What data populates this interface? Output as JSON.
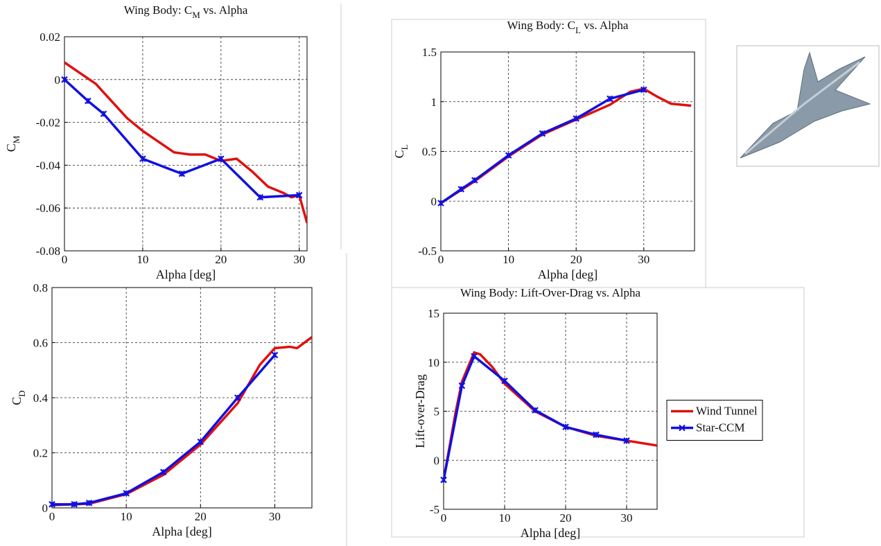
{
  "chart_data": [
    {
      "type": "line",
      "title": {
        "text": "Wing Body: C",
        "subscript": "M",
        "after": " vs. Alpha"
      },
      "xlabel": "Alpha [deg]",
      "ylabel": {
        "text": "C",
        "subscript": "M"
      },
      "xlim": [
        0,
        31
      ],
      "xticks": [
        0,
        10,
        20,
        30
      ],
      "ylim": [
        -0.08,
        0.02
      ],
      "yticks": [
        -0.08,
        -0.06,
        -0.04,
        -0.02,
        0,
        0.02
      ],
      "grid": true,
      "series": [
        {
          "color": "#e01010",
          "x": [
            0,
            2,
            4,
            6,
            8,
            10,
            12,
            14,
            16,
            18,
            20,
            22,
            24,
            26,
            28,
            29,
            30,
            31
          ],
          "values": [
            0.008,
            0.003,
            -0.002,
            -0.01,
            -0.018,
            -0.024,
            -0.029,
            -0.034,
            -0.035,
            -0.035,
            -0.038,
            -0.037,
            -0.043,
            -0.05,
            -0.053,
            -0.055,
            -0.054,
            -0.067
          ]
        },
        {
          "color": "#1010e0",
          "marker": "asterisk",
          "x": [
            0,
            3,
            5,
            10,
            15,
            20,
            25,
            30
          ],
          "values": [
            0,
            -0.01,
            -0.016,
            -0.037,
            -0.044,
            -0.037,
            -0.055,
            -0.054
          ]
        }
      ]
    },
    {
      "type": "line",
      "title": {
        "text": "Wing Body: C",
        "subscript": "L",
        "after": " vs. Alpha"
      },
      "xlabel": "Alpha [deg]",
      "ylabel": {
        "text": "C",
        "subscript": "L"
      },
      "xlim": [
        0,
        37.5
      ],
      "xticks": [
        0,
        10,
        20,
        30
      ],
      "ylim": [
        -0.5,
        1.5
      ],
      "yticks": [
        -0.5,
        0,
        0.5,
        1,
        1.5
      ],
      "grid": true,
      "series": [
        {
          "color": "#e01010",
          "x": [
            0,
            5,
            10,
            15,
            20,
            25,
            28,
            30,
            32,
            34,
            37
          ],
          "values": [
            -0.02,
            0.2,
            0.45,
            0.67,
            0.82,
            0.97,
            1.1,
            1.13,
            1.05,
            0.98,
            0.96
          ]
        },
        {
          "color": "#1010e0",
          "marker": "asterisk",
          "x": [
            0,
            3,
            5,
            10,
            15,
            20,
            25,
            30
          ],
          "values": [
            -0.02,
            0.12,
            0.21,
            0.46,
            0.68,
            0.83,
            1.03,
            1.12
          ]
        }
      ]
    },
    {
      "type": "line",
      "xlabel": "Alpha [deg]",
      "ylabel": {
        "text": "C",
        "subscript": "D"
      },
      "xlim": [
        0,
        35
      ],
      "xticks": [
        0,
        10,
        20,
        30
      ],
      "ylim": [
        0,
        0.8
      ],
      "yticks": [
        0,
        0.2,
        0.4,
        0.6,
        0.8
      ],
      "grid": true,
      "series": [
        {
          "color": "#e01010",
          "x": [
            0,
            5,
            10,
            15,
            20,
            25,
            28,
            30,
            32,
            33,
            35
          ],
          "values": [
            0.01,
            0.015,
            0.05,
            0.12,
            0.23,
            0.38,
            0.52,
            0.58,
            0.585,
            0.58,
            0.62
          ]
        },
        {
          "color": "#1010e0",
          "marker": "asterisk",
          "x": [
            0,
            3,
            5,
            10,
            15,
            20,
            25,
            30
          ],
          "values": [
            0.013,
            0.013,
            0.018,
            0.053,
            0.13,
            0.24,
            0.4,
            0.555
          ]
        }
      ]
    },
    {
      "type": "line",
      "title": {
        "text": "Wing Body: Lift-Over-Drag vs. Alpha"
      },
      "xlabel": "Alpha [deg]",
      "ylabel": {
        "text": "Lift-over-Drag"
      },
      "xlim": [
        0,
        35
      ],
      "xticks": [
        0,
        10,
        20,
        30
      ],
      "ylim": [
        -5,
        15
      ],
      "yticks": [
        -5,
        0,
        5,
        10,
        15
      ],
      "grid": true,
      "legend": "right",
      "series": [
        {
          "name": "Wind Tunnel",
          "color": "#e01010",
          "x": [
            0,
            2,
            3,
            5,
            6,
            8,
            10,
            15,
            20,
            25,
            30,
            35
          ],
          "values": [
            -2,
            5,
            8,
            11,
            10.8,
            9.5,
            7.8,
            5,
            3.4,
            2.5,
            2,
            1.5
          ]
        },
        {
          "name": "Star-CCM",
          "color": "#1010e0",
          "marker": "asterisk",
          "x": [
            0,
            3,
            5,
            10,
            15,
            20,
            25,
            30
          ],
          "values": [
            -2,
            7.6,
            10.6,
            8.1,
            5.1,
            3.4,
            2.6,
            2
          ]
        }
      ]
    }
  ]
}
